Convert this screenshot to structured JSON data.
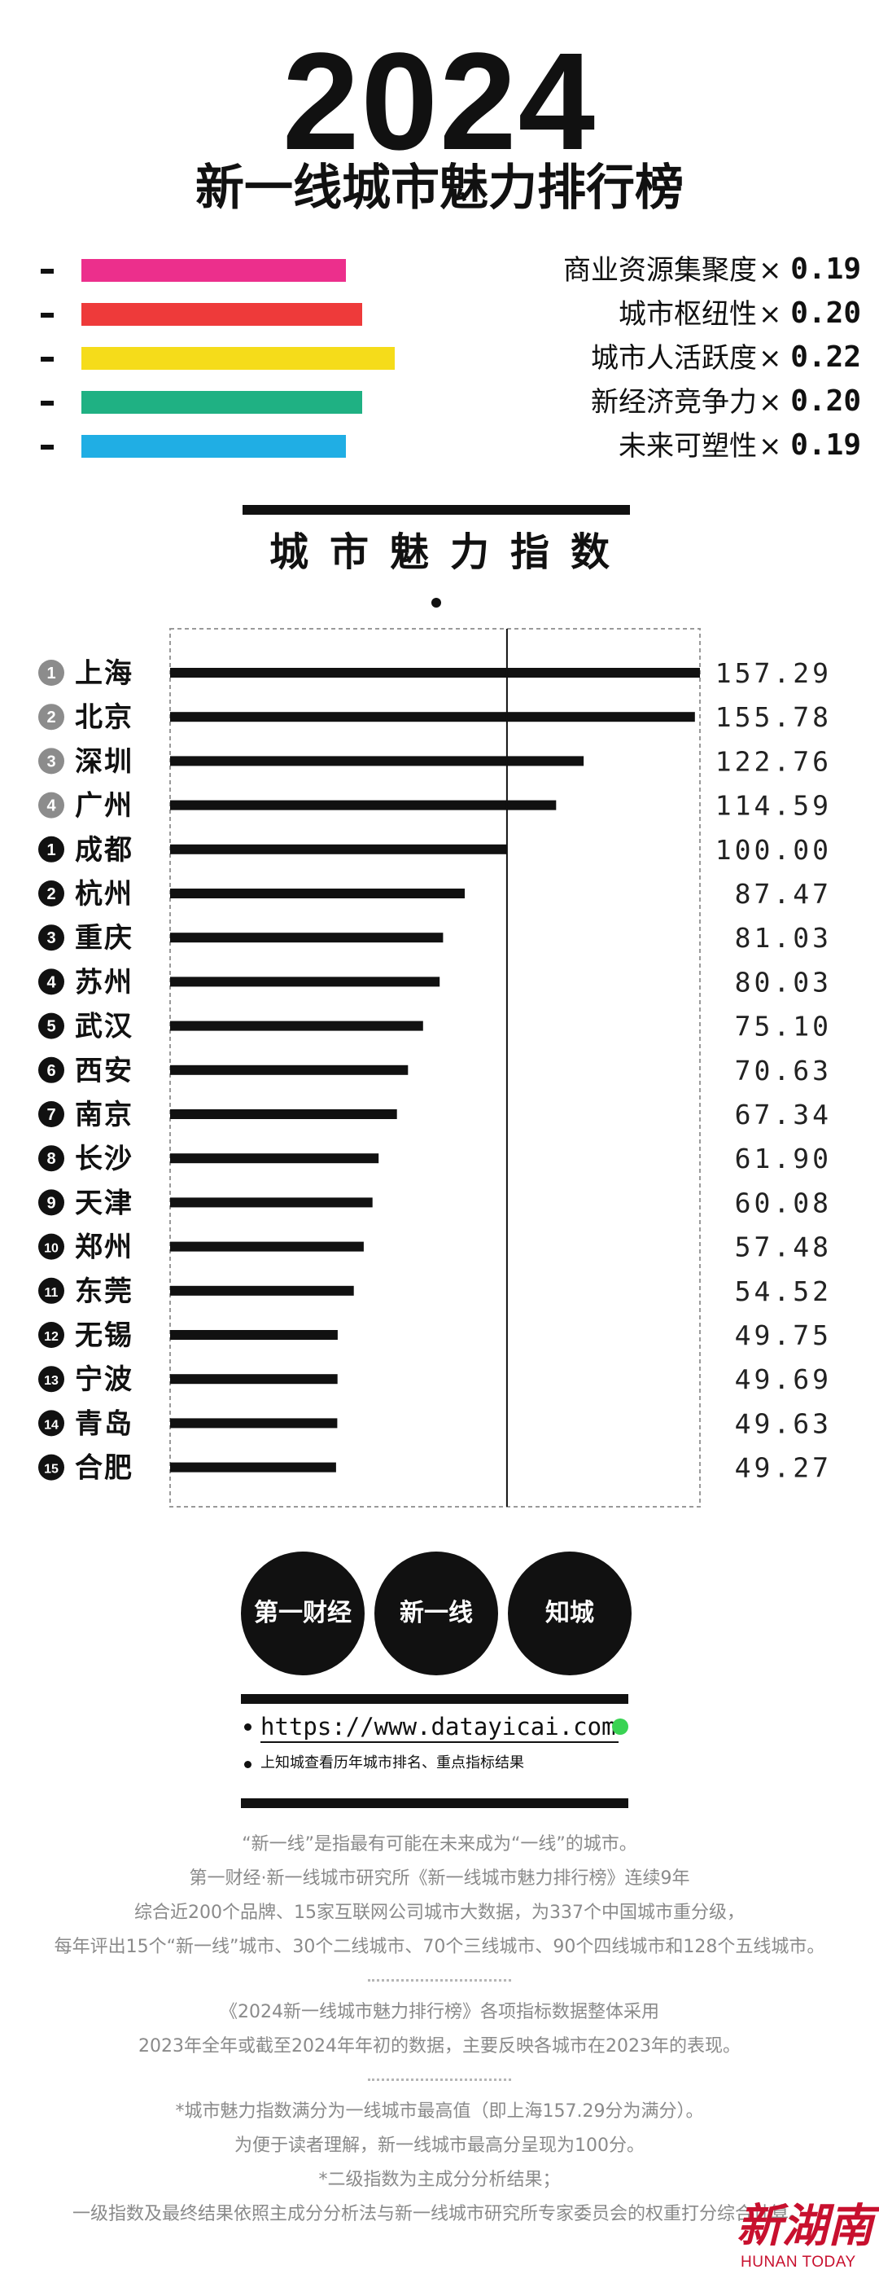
{
  "header": {
    "year": "2024",
    "title": "新一线城市魅力排行榜"
  },
  "weights": [
    {
      "label": "商业资源集聚度",
      "times": "×",
      "value": "0.19",
      "fraction": 0.19,
      "color": "#ec2f8c"
    },
    {
      "label": "城市枢纽性",
      "times": "×",
      "value": "0.20",
      "fraction": 0.2,
      "color": "#ee3a3a"
    },
    {
      "label": "城市人活跃度",
      "times": "×",
      "value": "0.22",
      "fraction": 0.22,
      "color": "#f5dc1a"
    },
    {
      "label": "新经济竞争力",
      "times": "×",
      "value": "0.20",
      "fraction": 0.2,
      "color": "#1fb183"
    },
    {
      "label": "未来可塑性",
      "times": "×",
      "value": "0.19",
      "fraction": 0.19,
      "color": "#20aee4"
    }
  ],
  "chart_data": {
    "type": "bar",
    "orientation": "horizontal",
    "title": "城市魅力指数",
    "reference_line": 100,
    "categories": [
      "上海",
      "北京",
      "深圳",
      "广州",
      "成都",
      "杭州",
      "重庆",
      "苏州",
      "武汉",
      "西安",
      "南京",
      "长沙",
      "天津",
      "郑州",
      "东莞",
      "无锡",
      "宁波",
      "青岛",
      "合肥"
    ],
    "ranks": [
      "1",
      "2",
      "3",
      "4",
      "1",
      "2",
      "3",
      "4",
      "5",
      "6",
      "7",
      "8",
      "9",
      "10",
      "11",
      "12",
      "13",
      "14",
      "15"
    ],
    "value_labels": [
      "157.29",
      "155.78",
      "122.76",
      "114.59",
      "100.00",
      "87.47",
      "81.03",
      "80.03",
      "75.10",
      "70.63",
      "67.34",
      "61.90",
      "60.08",
      "57.48",
      "54.52",
      "49.75",
      "49.69",
      "49.63",
      "49.27"
    ],
    "values": [
      157.29,
      155.78,
      122.76,
      114.59,
      100.0,
      87.47,
      81.03,
      80.03,
      75.1,
      70.63,
      67.34,
      61.9,
      60.08,
      57.48,
      54.52,
      49.75,
      49.69,
      49.63,
      49.27
    ],
    "groups": [
      "一线城市",
      "一线城市",
      "一线城市",
      "一线城市",
      "新一线",
      "新一线",
      "新一线",
      "新一线",
      "新一线",
      "新一线",
      "新一线",
      "新一线",
      "新一线",
      "新一线",
      "新一线",
      "新一线",
      "新一线",
      "新一线",
      "新一线"
    ],
    "group_colors": {
      "一线城市": "#8c8c8c",
      "新一线": "#111111"
    },
    "bar_color": "#111111"
  },
  "logos": [
    {
      "name": "第一财经",
      "text": "第一财经"
    },
    {
      "name": "新一线",
      "text": "新一线"
    },
    {
      "name": "知城",
      "text": "知城"
    }
  ],
  "link": {
    "url": "https://www.datayicai.com",
    "url_color": "#39d353",
    "sub": "上知城查看历年城市排名、重点指标结果"
  },
  "notes": {
    "block1": [
      "“新一线”是指最有可能在未来成为“一线”的城市。",
      "第一财经·新一线城市研究所《新一线城市魅力排行榜》连续9年",
      "综合近200个品牌、15家互联网公司城市大数据，为337个中国城市重分级，",
      "每年评出15个“新一线”城市、30个二线城市、70个三线城市、90个四线城市和128个五线城市。"
    ],
    "block2": [
      "《2024新一线城市魅力排行榜》各项指标数据整体采用",
      "2023年全年或截至2024年年初的数据，主要反映各城市在2023年的表现。"
    ],
    "block3": [
      "*城市魅力指数满分为一线城市最高值（即上海157.29分为满分）。",
      "为便于读者理解，新一线城市最高分呈现为100分。",
      "*二级指数为主成分分析结果；",
      "一级指数及最终结果依照主成分分析法与新一线城市研究所专家委员会的权重打分综合计算。"
    ]
  },
  "watermark": {
    "cn": "新湖南",
    "en": "HUNAN TODAY",
    "color": "#c8102e"
  }
}
